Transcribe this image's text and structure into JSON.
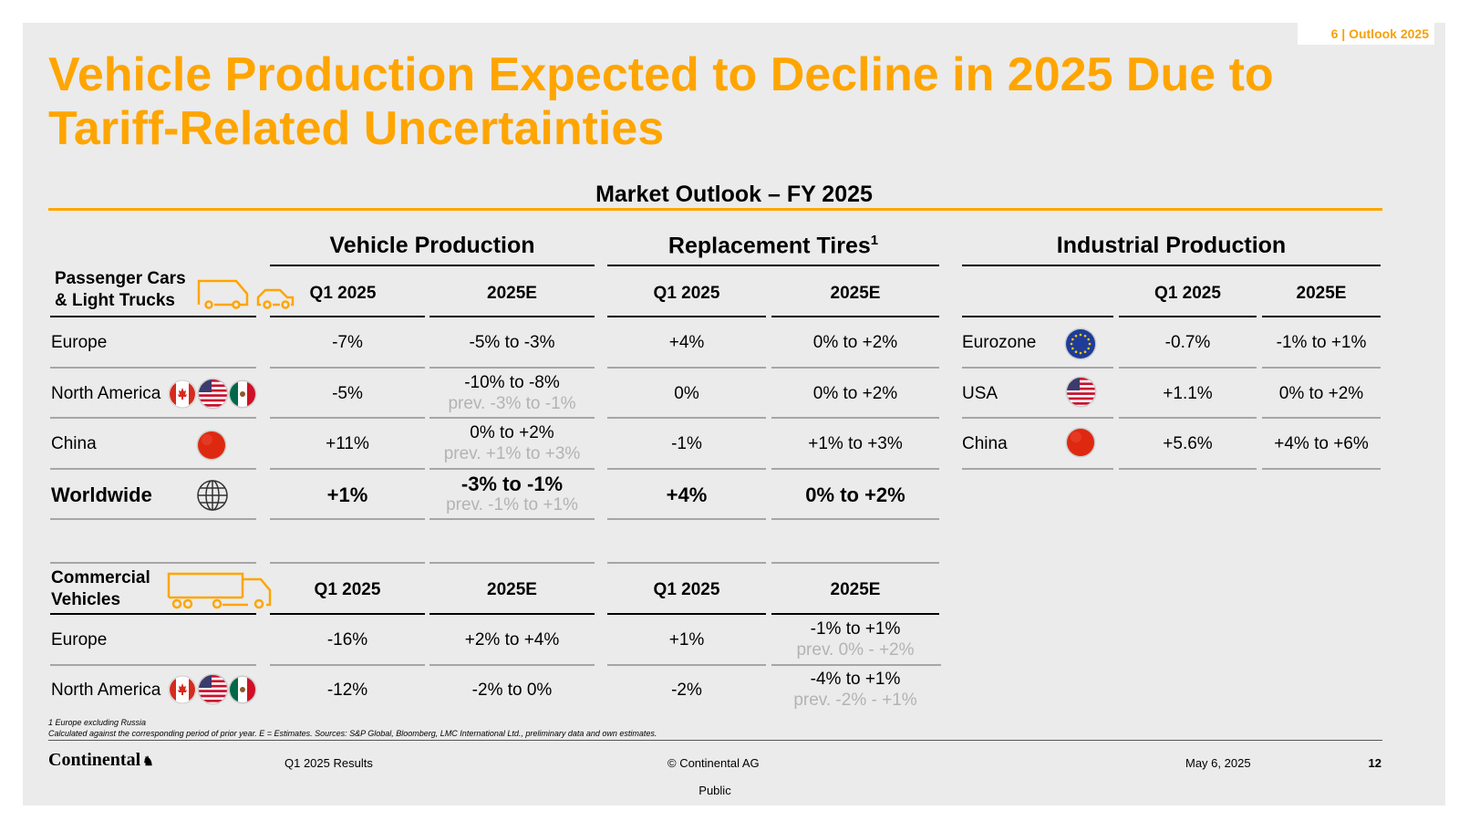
{
  "header": {
    "tag": "6 | Outlook 2025",
    "title_line1": "Vehicle Production Expected to Decline in 2025 Due to",
    "title_line2": "Tariff-Related Uncertainties",
    "subtitle": "Market Outlook – FY 2025"
  },
  "groups": {
    "vehicle_production": "Vehicle Production",
    "replacement_tires": "Replacement Tires",
    "replacement_tires_sup": "1",
    "industrial_production": "Industrial Production"
  },
  "columns": {
    "q1": "Q1 2025",
    "e2025": "2025E"
  },
  "passenger": {
    "label_line1": "Passenger Cars",
    "label_line2": "& Light Trucks",
    "rows": [
      {
        "region": "Europe",
        "vp_q1": "-7%",
        "vp_e": "-5% to -3%",
        "vp_prev": "",
        "rt_q1": "+4%",
        "rt_e": "0% to +2%"
      },
      {
        "region": "North America",
        "vp_q1": "-5%",
        "vp_e": "-10% to -8%",
        "vp_prev": "prev. -3% to -1%",
        "rt_q1": "0%",
        "rt_e": "0% to +2%"
      },
      {
        "region": "China",
        "vp_q1": "+11%",
        "vp_e": "0% to +2%",
        "vp_prev": "prev. +1% to +3%",
        "rt_q1": "-1%",
        "rt_e": "+1% to +3%"
      },
      {
        "region": "Worldwide",
        "vp_q1": "+1%",
        "vp_e": "-3% to -1%",
        "vp_prev": "prev. -1% to +1%",
        "rt_q1": "+4%",
        "rt_e": "0% to +2%"
      }
    ]
  },
  "industrial": {
    "rows": [
      {
        "region": "Eurozone",
        "q1": "-0.7%",
        "e": "-1% to +1%"
      },
      {
        "region": "USA",
        "q1": "+1.1%",
        "e": "0% to +2%"
      },
      {
        "region": "China",
        "q1": "+5.6%",
        "e": "+4% to +6%"
      }
    ]
  },
  "commercial": {
    "label_line1": "Commercial",
    "label_line2": "Vehicles",
    "rows": [
      {
        "region": "Europe",
        "vp_q1": "-16%",
        "vp_e": "+2% to +4%",
        "rt_q1": "+1%",
        "rt_e": "-1% to +1%",
        "rt_prev": "prev. 0% - +2%"
      },
      {
        "region": "North America",
        "vp_q1": "-12%",
        "vp_e": "-2% to 0%",
        "rt_q1": "-2%",
        "rt_e": "-4% to +1%",
        "rt_prev": "prev. -2% - +1%"
      }
    ]
  },
  "footnotes": {
    "note1": "1 Europe excluding Russia",
    "note2": "Calculated against the corresponding period of prior year. E = Estimates. Sources: S&P Global, Bloomberg, LMC International Ltd., preliminary data and own estimates."
  },
  "footer": {
    "logo": "Continental",
    "report": "Q1 2025 Results",
    "copyright": "© Continental AG",
    "date": "May 6, 2025",
    "page": "12",
    "classification": "Public"
  },
  "colors": {
    "accent": "#ffa500",
    "background": "#ebebeb"
  }
}
